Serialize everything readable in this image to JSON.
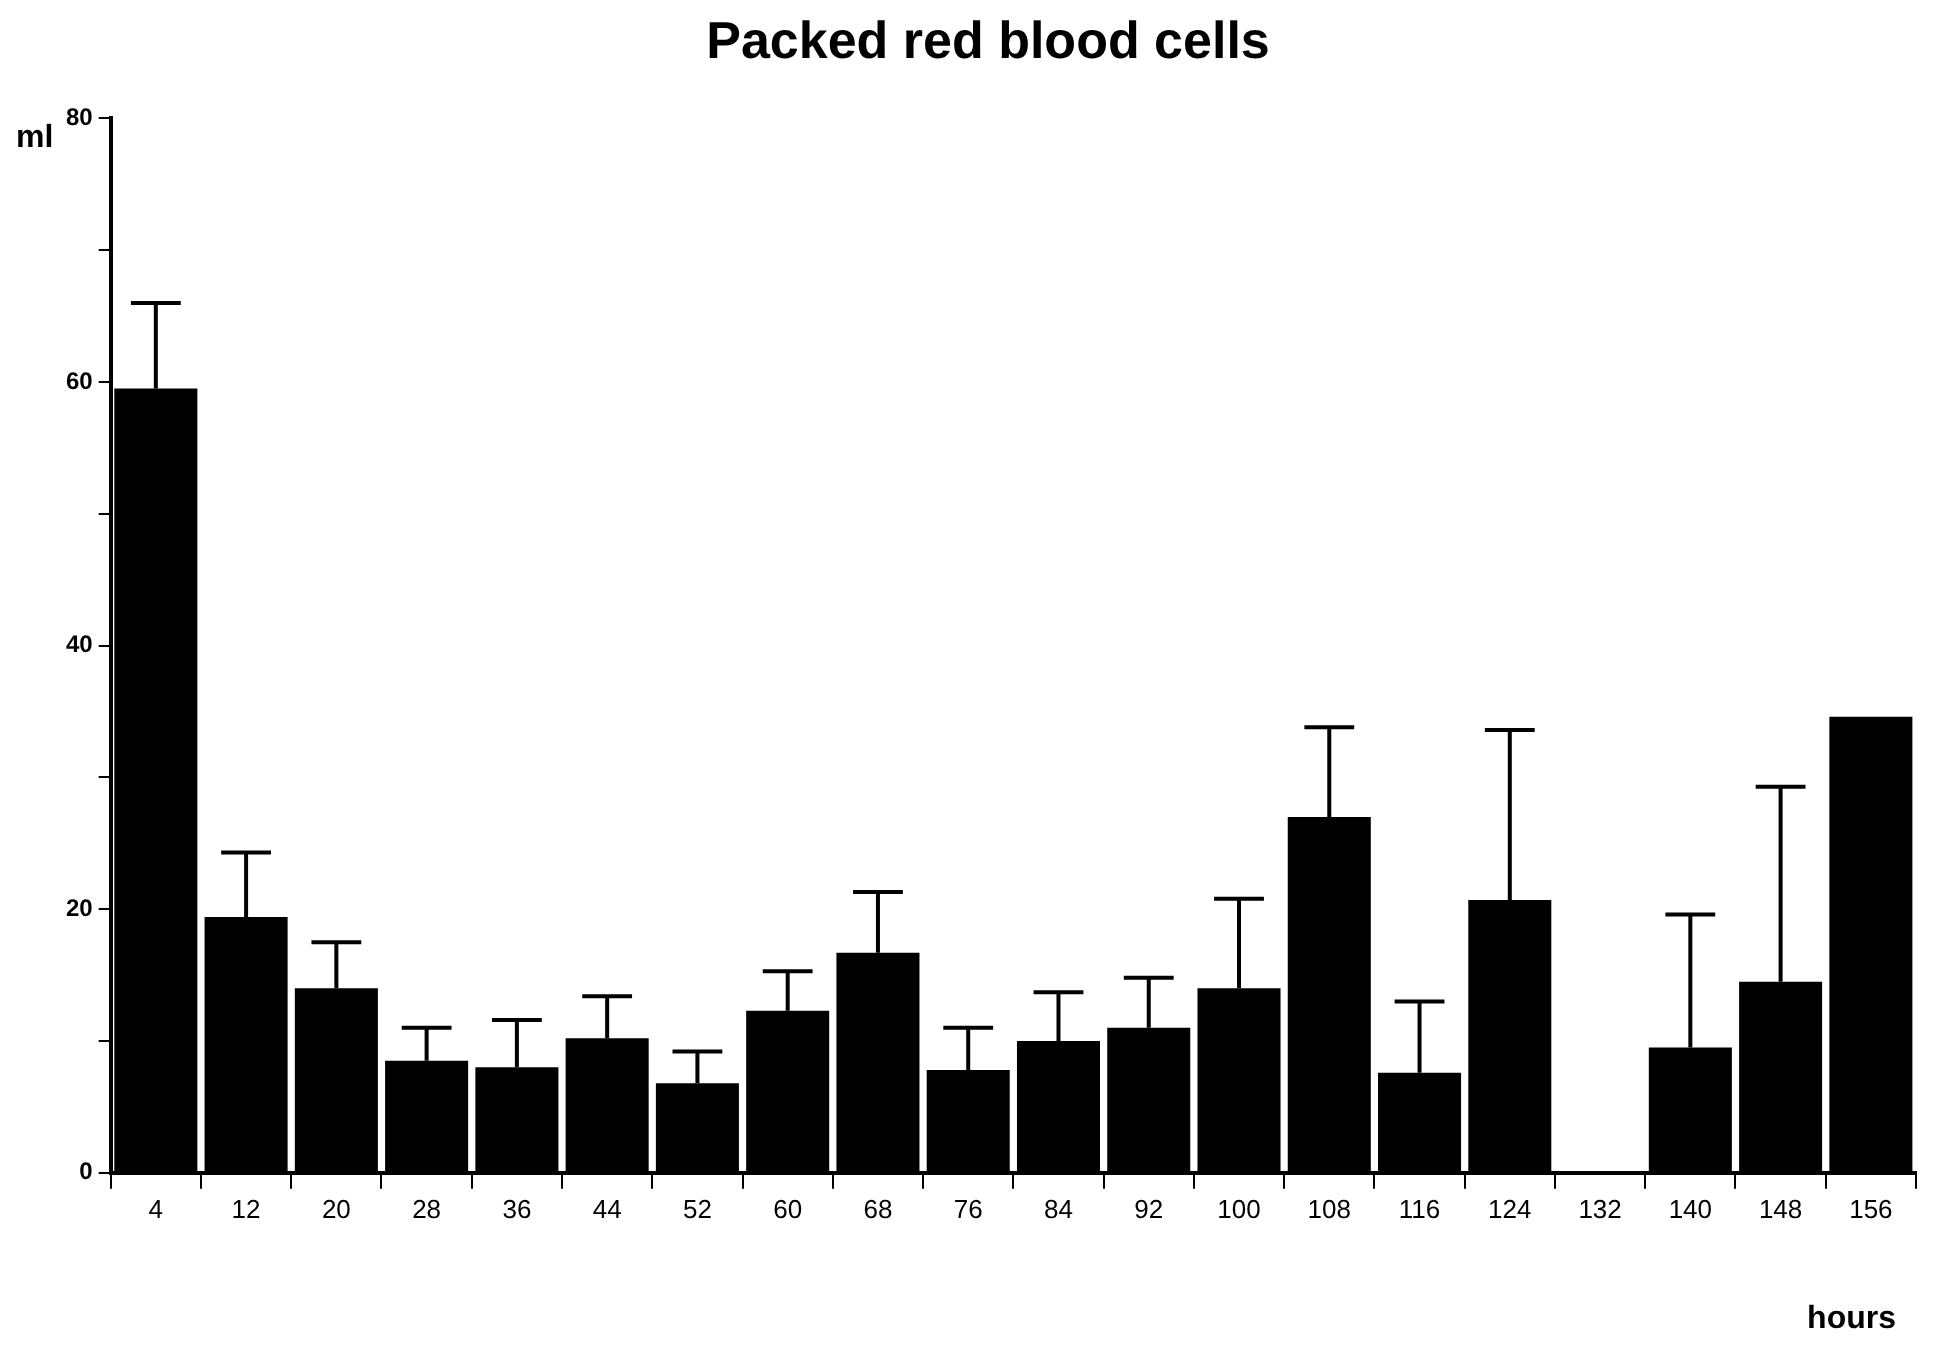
{
  "chart_data": {
    "type": "bar",
    "title": "Packed red blood cells",
    "xlabel": "hours",
    "ylabel": "ml",
    "categories": [
      "4",
      "12",
      "20",
      "28",
      "36",
      "44",
      "52",
      "60",
      "68",
      "76",
      "84",
      "92",
      "100",
      "108",
      "116",
      "124",
      "132",
      "140",
      "148",
      "156"
    ],
    "values": [
      59.5,
      19.4,
      14.0,
      8.5,
      8.0,
      10.2,
      6.8,
      12.3,
      16.7,
      7.8,
      10.0,
      11.0,
      14.0,
      27.0,
      7.6,
      20.7,
      null,
      9.5,
      14.5,
      34.6
    ],
    "errors": [
      [
        59.5,
        66.0
      ],
      [
        19.4,
        24.3
      ],
      [
        14.0,
        17.5
      ],
      [
        8.5,
        11.0
      ],
      [
        8.0,
        11.6
      ],
      [
        10.2,
        13.4
      ],
      [
        6.8,
        9.2
      ],
      [
        12.3,
        15.3
      ],
      [
        16.7,
        21.3
      ],
      [
        7.8,
        11.0
      ],
      [
        10.0,
        13.7
      ],
      [
        11.0,
        14.8
      ],
      [
        14.0,
        20.8
      ],
      [
        27.0,
        33.8
      ],
      [
        7.6,
        13.0
      ],
      [
        20.7,
        33.6
      ],
      null,
      [
        9.5,
        19.6
      ],
      [
        14.5,
        29.3
      ],
      null
    ],
    "color": "#000000",
    "ylim": [
      0,
      80
    ],
    "yticks": [
      0,
      {
        "value": 10,
        "label": null
      },
      20,
      {
        "value": 30,
        "label": null
      },
      40,
      {
        "value": 50,
        "label": null
      },
      60,
      {
        "value": 70,
        "label": null
      },
      80
    ],
    "grid": false,
    "legend": false
  }
}
